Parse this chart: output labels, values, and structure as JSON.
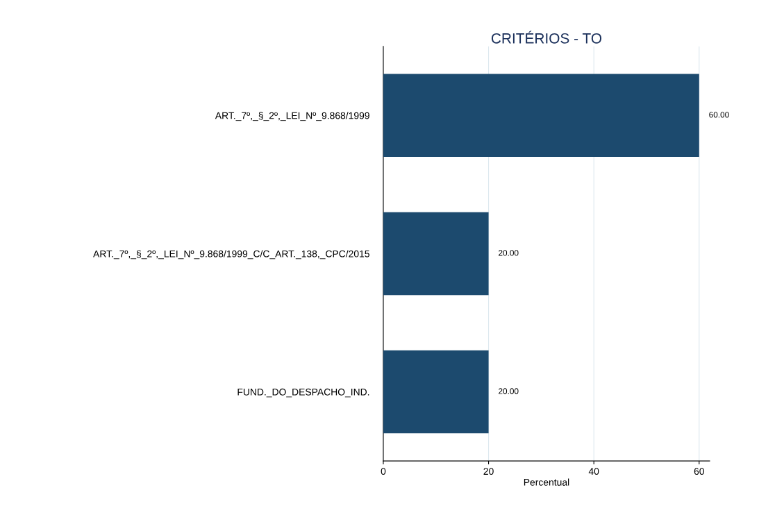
{
  "chart_data": {
    "type": "bar",
    "orientation": "horizontal",
    "title": "CRITÉRIOS - TO",
    "xlabel": "Percentual",
    "categories": [
      "ART._7º,_§_2º,_LEI_Nº_9.868/1999",
      "ART._7º,_§_2º,_LEI_Nº_9.868/1999_C/C_ART._138,_CPC/2015",
      "FUND._DO_DESPACHO_IND."
    ],
    "values": [
      60,
      20,
      20
    ],
    "value_labels": [
      "60.00",
      "20.00",
      "20.00"
    ],
    "color": "#1c4a6e",
    "xlim": [
      0,
      62
    ],
    "xticks": [
      0,
      20,
      40,
      60
    ],
    "grid": "x"
  }
}
